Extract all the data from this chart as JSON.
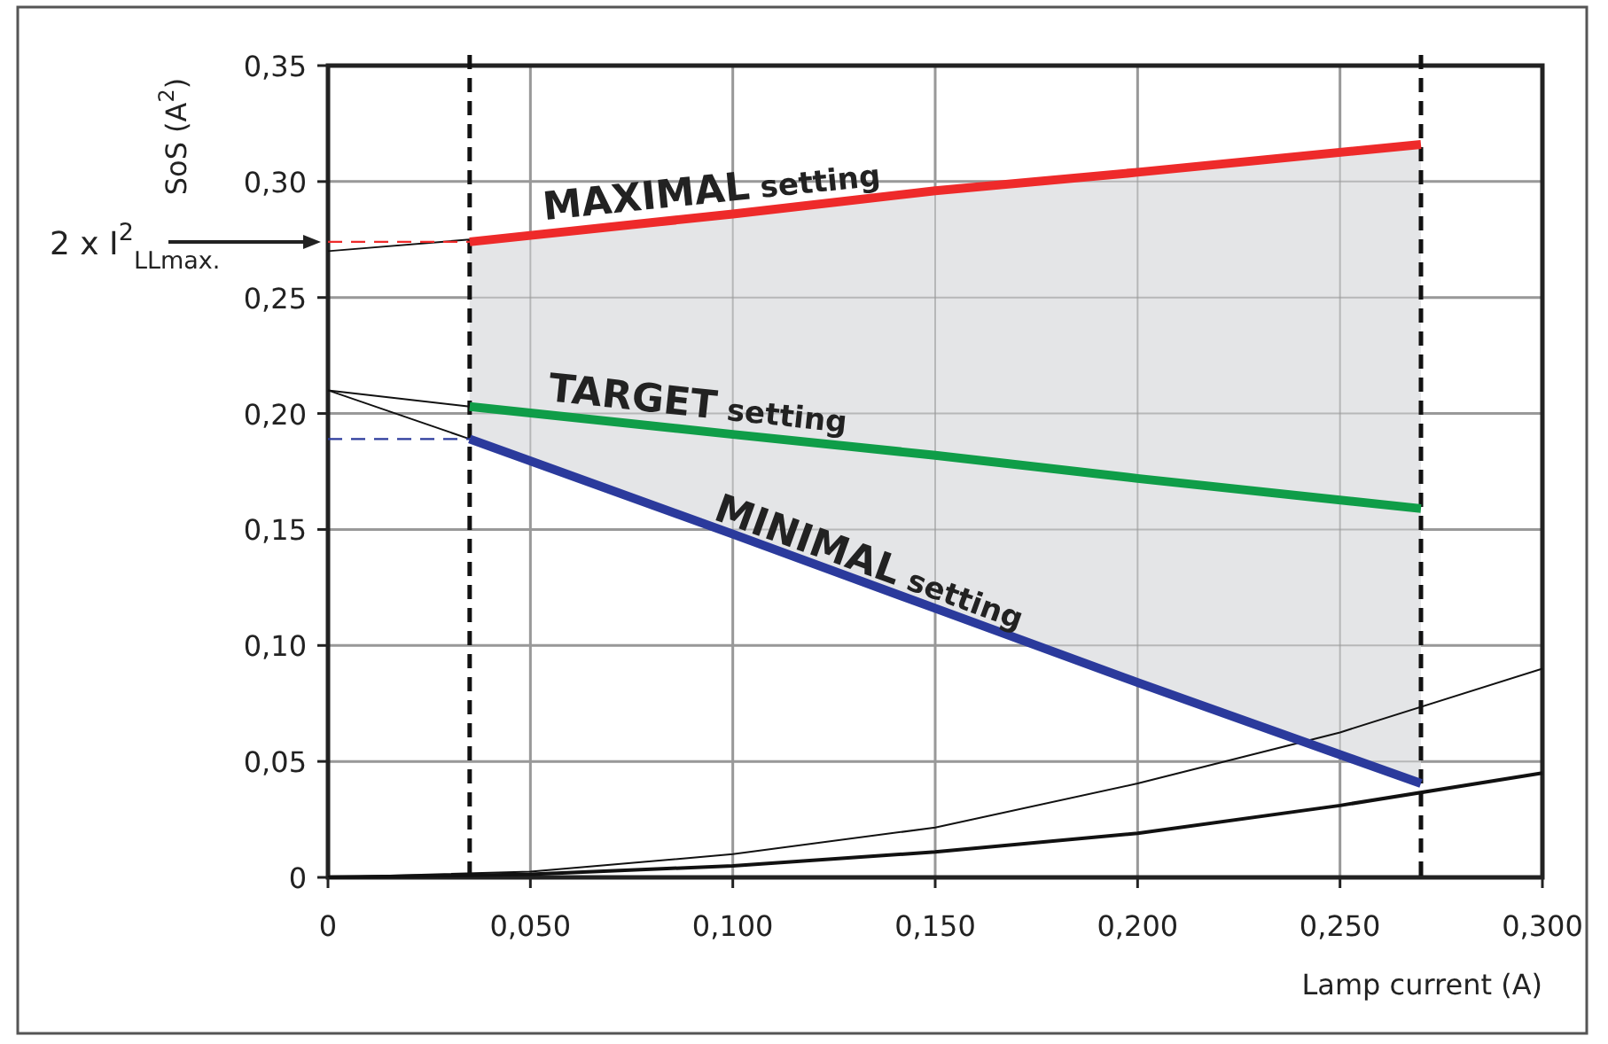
{
  "chart_data": {
    "type": "line",
    "xlabel": "Lamp current (A)",
    "ylabel": "SoS (A$^{2}$)",
    "xlim": [
      0,
      0.3
    ],
    "ylim": [
      0,
      0.35
    ],
    "xticks": [
      0,
      {
        "value": 0.05,
        "label": "0,050"
      },
      {
        "value": 0.1,
        "label": "0,100"
      },
      {
        "value": 0.15,
        "label": "0,150"
      },
      {
        "value": 0.2,
        "label": "0,200"
      },
      {
        "value": 0.25,
        "label": "0,250"
      },
      {
        "value": 0.3,
        "label": "0,300"
      }
    ],
    "yticks": [
      0,
      {
        "value": 0.05,
        "label": "0,05"
      },
      {
        "value": 0.1,
        "label": "0,10"
      },
      {
        "value": 0.15,
        "label": "0,15"
      },
      {
        "value": 0.2,
        "label": "0,20"
      },
      {
        "value": 0.25,
        "label": "0,25"
      },
      {
        "value": 0.3,
        "label": "0,30"
      },
      {
        "value": 0.35,
        "label": "0,35"
      }
    ],
    "grid": true,
    "line_style": "solid",
    "series": [
      {
        "color": "#111111",
        "x": [
          0,
          0.05,
          0.1,
          0.15,
          0.2,
          0.25,
          0.3
        ],
        "values": [
          0,
          0.0025,
          0.01,
          0.0215,
          0.0405,
          0.0625,
          0.09
        ]
      },
      {
        "color": "#111111",
        "x": [
          0,
          0.05,
          0.1,
          0.15,
          0.2,
          0.25,
          0.3
        ],
        "values": [
          0,
          0.0013,
          0.005,
          0.011,
          0.019,
          0.031,
          0.045
        ]
      },
      {
        "color": "#111111",
        "x": [
          0,
          0.035
        ],
        "values": [
          0.27,
          0.275
        ]
      },
      {
        "color": "#111111",
        "x": [
          0,
          0.035
        ],
        "values": [
          0.21,
          0.203
        ]
      },
      {
        "color": "#111111",
        "x": [
          0,
          0.035
        ],
        "values": [
          0.21,
          0.189
        ]
      },
      {
        "color": "#ee2a2a",
        "x": [
          0,
          0.035
        ],
        "values": [
          0.274,
          0.274
        ],
        "line_style": "dashed"
      },
      {
        "color": "#2b3a9c",
        "x": [
          0,
          0.035
        ],
        "values": [
          0.189,
          0.189
        ],
        "line_style": "dashed"
      },
      {
        "name": "MAXIMAL setting",
        "color": "#ee2a2a",
        "x": [
          0.035,
          0.1,
          0.15,
          0.2,
          0.27
        ],
        "values": [
          0.274,
          0.286,
          0.296,
          0.304,
          0.316
        ]
      },
      {
        "name": "TARGET setting",
        "color": "#0f9d48",
        "x": [
          0.035,
          0.1,
          0.15,
          0.2,
          0.27
        ],
        "values": [
          0.203,
          0.191,
          0.182,
          0.172,
          0.159
        ],
        "lower": [
          0.189,
          0.148,
          0.116,
          0.084,
          0.0405
        ],
        "upper": [
          0.274,
          0.286,
          0.296,
          0.304,
          0.316
        ]
      },
      {
        "name": "MINIMAL setting",
        "color": "#2b3a9c",
        "x": [
          0.035,
          0.1,
          0.15,
          0.2,
          0.27
        ],
        "values": [
          0.189,
          0.148,
          0.116,
          0.084,
          0.0405
        ]
      }
    ],
    "ref_lines": [
      {
        "axis": "x",
        "value": 0.035,
        "color": "#111111",
        "line_style": "dashed"
      },
      {
        "axis": "x",
        "value": 0.27,
        "color": "#111111",
        "line_style": "dashed"
      }
    ],
    "annotations": [
      "2 x I$^{2}$$_{LLmax.}$"
    ]
  }
}
